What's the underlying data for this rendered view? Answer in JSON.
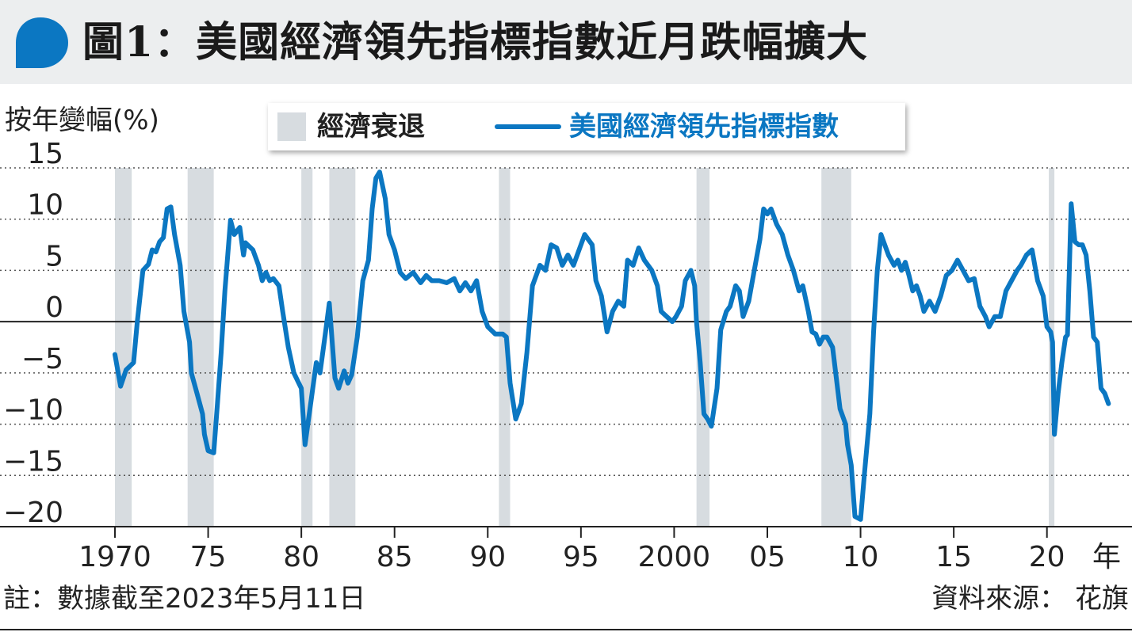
{
  "title": "圖1：美國經濟領先指標指數近月跌幅擴大",
  "footnote": "註：數據截至2023年5月11日",
  "source": "資料來源： 花旗",
  "colors": {
    "series": "#0b77c2",
    "recession": "#d7dce0",
    "title_bar": "#eceeef"
  },
  "chart_data": {
    "type": "line",
    "ylabel": "按年變幅(%)",
    "xlabel": "",
    "x_unit_label": "年",
    "ylim": [
      -20,
      15
    ],
    "xlim": [
      1970,
      2023.5
    ],
    "yticks": [
      15,
      10,
      5,
      0,
      -5,
      -10,
      -15,
      -20
    ],
    "xticks": [
      {
        "x": 1970,
        "label": "1970"
      },
      {
        "x": 1975,
        "label": "75"
      },
      {
        "x": 1980,
        "label": "80"
      },
      {
        "x": 1985,
        "label": "85"
      },
      {
        "x": 1990,
        "label": "90"
      },
      {
        "x": 1995,
        "label": "95"
      },
      {
        "x": 2000,
        "label": "2000"
      },
      {
        "x": 2005,
        "label": "05"
      },
      {
        "x": 2010,
        "label": "10"
      },
      {
        "x": 2015,
        "label": "15"
      },
      {
        "x": 2020,
        "label": "20"
      }
    ],
    "grid": "dotted-horizontal",
    "legend": "top-center",
    "recessions_label": "經濟衰退",
    "recessions": [
      [
        1970.0,
        1970.9
      ],
      [
        1973.9,
        1975.3
      ],
      [
        1980.0,
        1980.6
      ],
      [
        1981.5,
        1982.9
      ],
      [
        1990.6,
        1991.2
      ],
      [
        2001.2,
        2001.9
      ],
      [
        2007.9,
        2009.5
      ],
      [
        2020.1,
        2020.4
      ]
    ],
    "series": [
      {
        "name": "美國經濟領先指標指數",
        "points": [
          [
            1970.0,
            -3.2
          ],
          [
            1970.3,
            -6.3
          ],
          [
            1970.6,
            -4.7
          ],
          [
            1971.0,
            -4.0
          ],
          [
            1971.2,
            0.0
          ],
          [
            1971.5,
            5.0
          ],
          [
            1971.8,
            5.6
          ],
          [
            1972.0,
            7.0
          ],
          [
            1972.2,
            6.8
          ],
          [
            1972.4,
            7.8
          ],
          [
            1972.6,
            8.2
          ],
          [
            1972.8,
            11.0
          ],
          [
            1973.0,
            11.2
          ],
          [
            1973.2,
            8.5
          ],
          [
            1973.5,
            5.5
          ],
          [
            1973.7,
            1.0
          ],
          [
            1974.0,
            -2.0
          ],
          [
            1974.1,
            -5.0
          ],
          [
            1974.4,
            -7.0
          ],
          [
            1974.7,
            -9.0
          ],
          [
            1974.8,
            -11.0
          ],
          [
            1975.0,
            -12.6
          ],
          [
            1975.3,
            -12.8
          ],
          [
            1975.5,
            -8.0
          ],
          [
            1975.7,
            -3.0
          ],
          [
            1975.9,
            3.0
          ],
          [
            1976.2,
            9.9
          ],
          [
            1976.4,
            8.5
          ],
          [
            1976.7,
            9.2
          ],
          [
            1976.9,
            6.5
          ],
          [
            1977.0,
            7.7
          ],
          [
            1977.4,
            7.0
          ],
          [
            1977.7,
            5.5
          ],
          [
            1977.9,
            4.0
          ],
          [
            1978.1,
            4.8
          ],
          [
            1978.3,
            4.0
          ],
          [
            1978.5,
            4.2
          ],
          [
            1978.8,
            3.5
          ],
          [
            1979.0,
            1.0
          ],
          [
            1979.3,
            -2.5
          ],
          [
            1979.6,
            -5.0
          ],
          [
            1980.0,
            -6.5
          ],
          [
            1980.2,
            -12.0
          ],
          [
            1980.5,
            -8.0
          ],
          [
            1980.8,
            -4.0
          ],
          [
            1981.0,
            -5.0
          ],
          [
            1981.3,
            -1.0
          ],
          [
            1981.5,
            1.8
          ],
          [
            1981.8,
            -5.5
          ],
          [
            1982.0,
            -6.5
          ],
          [
            1982.3,
            -4.8
          ],
          [
            1982.5,
            -6.0
          ],
          [
            1982.7,
            -5.2
          ],
          [
            1983.0,
            -1.5
          ],
          [
            1983.3,
            4.0
          ],
          [
            1983.6,
            6.0
          ],
          [
            1983.8,
            11.0
          ],
          [
            1984.0,
            14.0
          ],
          [
            1984.2,
            14.6
          ],
          [
            1984.5,
            12.0
          ],
          [
            1984.7,
            8.5
          ],
          [
            1985.0,
            7.0
          ],
          [
            1985.3,
            4.8
          ],
          [
            1985.6,
            4.2
          ],
          [
            1986.0,
            4.8
          ],
          [
            1986.4,
            3.8
          ],
          [
            1986.7,
            4.5
          ],
          [
            1987.0,
            4.0
          ],
          [
            1987.4,
            4.0
          ],
          [
            1987.8,
            3.8
          ],
          [
            1988.2,
            4.2
          ],
          [
            1988.5,
            3.0
          ],
          [
            1988.8,
            3.8
          ],
          [
            1989.1,
            3.0
          ],
          [
            1989.4,
            4.0
          ],
          [
            1989.7,
            1.0
          ],
          [
            1990.0,
            -0.5
          ],
          [
            1990.4,
            -1.2
          ],
          [
            1990.8,
            -1.2
          ],
          [
            1991.0,
            -1.5
          ],
          [
            1991.2,
            -6.0
          ],
          [
            1991.5,
            -9.5
          ],
          [
            1991.8,
            -8.0
          ],
          [
            1992.1,
            -3.0
          ],
          [
            1992.4,
            3.5
          ],
          [
            1992.8,
            5.5
          ],
          [
            1993.1,
            5.0
          ],
          [
            1993.4,
            7.5
          ],
          [
            1993.7,
            7.2
          ],
          [
            1994.0,
            5.5
          ],
          [
            1994.3,
            6.5
          ],
          [
            1994.6,
            5.5
          ],
          [
            1994.9,
            7.0
          ],
          [
            1995.2,
            8.5
          ],
          [
            1995.4,
            8.0
          ],
          [
            1995.6,
            7.5
          ],
          [
            1995.8,
            4.0
          ],
          [
            1996.1,
            2.5
          ],
          [
            1996.4,
            -1.0
          ],
          [
            1996.7,
            1.0
          ],
          [
            1997.0,
            2.0
          ],
          [
            1997.3,
            1.5
          ],
          [
            1997.5,
            6.0
          ],
          [
            1997.8,
            5.5
          ],
          [
            1998.1,
            7.2
          ],
          [
            1998.4,
            6.0
          ],
          [
            1998.8,
            5.0
          ],
          [
            1999.1,
            3.5
          ],
          [
            1999.3,
            1.0
          ],
          [
            1999.6,
            0.5
          ],
          [
            1999.9,
            0.0
          ],
          [
            2000.1,
            0.5
          ],
          [
            2000.4,
            1.5
          ],
          [
            2000.6,
            4.0
          ],
          [
            2000.9,
            5.0
          ],
          [
            2001.1,
            3.5
          ],
          [
            2001.2,
            0.0
          ],
          [
            2001.4,
            -4.0
          ],
          [
            2001.6,
            -9.0
          ],
          [
            2001.8,
            -9.5
          ],
          [
            2002.0,
            -10.2
          ],
          [
            2002.3,
            -6.5
          ],
          [
            2002.5,
            -0.8
          ],
          [
            2002.8,
            1.0
          ],
          [
            2003.0,
            1.5
          ],
          [
            2003.3,
            3.5
          ],
          [
            2003.5,
            3.0
          ],
          [
            2003.7,
            0.5
          ],
          [
            2004.0,
            2.0
          ],
          [
            2004.3,
            5.0
          ],
          [
            2004.6,
            8.0
          ],
          [
            2004.8,
            11.0
          ],
          [
            2005.0,
            10.5
          ],
          [
            2005.2,
            11.0
          ],
          [
            2005.5,
            9.5
          ],
          [
            2005.8,
            8.5
          ],
          [
            2006.1,
            6.5
          ],
          [
            2006.4,
            5.0
          ],
          [
            2006.7,
            3.0
          ],
          [
            2006.9,
            3.5
          ],
          [
            2007.2,
            1.0
          ],
          [
            2007.4,
            -1.0
          ],
          [
            2007.6,
            -1.2
          ],
          [
            2007.8,
            -2.2
          ],
          [
            2008.0,
            -1.5
          ],
          [
            2008.2,
            -1.5
          ],
          [
            2008.5,
            -2.5
          ],
          [
            2008.7,
            -5.5
          ],
          [
            2008.9,
            -8.5
          ],
          [
            2009.2,
            -10.0
          ],
          [
            2009.3,
            -12.0
          ],
          [
            2009.5,
            -14.0
          ],
          [
            2009.7,
            -19.0
          ],
          [
            2010.0,
            -19.3
          ],
          [
            2010.2,
            -15.0
          ],
          [
            2010.5,
            -9.0
          ],
          [
            2010.7,
            -1.0
          ],
          [
            2010.9,
            5.0
          ],
          [
            2011.1,
            8.5
          ],
          [
            2011.3,
            7.5
          ],
          [
            2011.5,
            6.5
          ],
          [
            2011.8,
            5.5
          ],
          [
            2012.0,
            6.0
          ],
          [
            2012.2,
            5.0
          ],
          [
            2012.4,
            5.8
          ],
          [
            2012.6,
            4.5
          ],
          [
            2012.8,
            3.0
          ],
          [
            2013.0,
            3.5
          ],
          [
            2013.2,
            2.5
          ],
          [
            2013.4,
            1.0
          ],
          [
            2013.7,
            2.0
          ],
          [
            2014.0,
            1.0
          ],
          [
            2014.3,
            2.5
          ],
          [
            2014.6,
            4.5
          ],
          [
            2014.9,
            5.0
          ],
          [
            2015.2,
            6.0
          ],
          [
            2015.5,
            5.0
          ],
          [
            2015.8,
            4.0
          ],
          [
            2016.1,
            4.2
          ],
          [
            2016.4,
            1.5
          ],
          [
            2016.7,
            0.5
          ],
          [
            2016.9,
            -0.5
          ],
          [
            2017.2,
            0.5
          ],
          [
            2017.5,
            0.5
          ],
          [
            2017.8,
            3.0
          ],
          [
            2018.1,
            4.0
          ],
          [
            2018.4,
            5.0
          ],
          [
            2018.6,
            5.5
          ],
          [
            2018.9,
            6.5
          ],
          [
            2019.2,
            7.0
          ],
          [
            2019.5,
            4.0
          ],
          [
            2019.8,
            2.5
          ],
          [
            2020.0,
            -0.5
          ],
          [
            2020.2,
            -1.0
          ],
          [
            2020.3,
            -2.0
          ],
          [
            2020.4,
            -11.0
          ],
          [
            2020.6,
            -7.0
          ],
          [
            2020.8,
            -4.0
          ],
          [
            2021.0,
            -1.5
          ],
          [
            2021.1,
            -1.3
          ],
          [
            2021.3,
            11.5
          ],
          [
            2021.5,
            7.8
          ],
          [
            2021.7,
            7.5
          ],
          [
            2021.9,
            7.5
          ],
          [
            2022.1,
            6.5
          ],
          [
            2022.3,
            3.0
          ],
          [
            2022.5,
            -1.5
          ],
          [
            2022.7,
            -2.0
          ],
          [
            2022.9,
            -6.5
          ],
          [
            2023.1,
            -7.0
          ],
          [
            2023.3,
            -8.0
          ]
        ]
      }
    ]
  }
}
